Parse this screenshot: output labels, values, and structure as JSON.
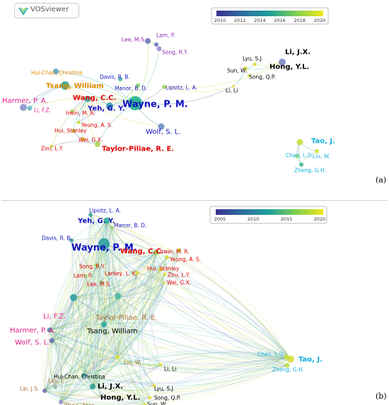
{
  "logo_text": "VOSviewer",
  "panel_a": {
    "label": "(a)",
    "legend": {
      "ticks": [
        "2010",
        "2012",
        "2014",
        "2016",
        "2018",
        "2020"
      ]
    },
    "nodes": [
      {
        "label": "Lee, M.S.",
        "color": "#8e2ab0"
      },
      {
        "label": "Lam, P.",
        "color": "#8e2ab0"
      },
      {
        "label": "Song, R.Y.",
        "color": "#8e2ab0"
      },
      {
        "label": "Hui-Chan, Christina",
        "color": "#e08a00"
      },
      {
        "label": "Tsang, William",
        "color": "#e08a00"
      },
      {
        "label": "Davis, R. B.",
        "color": "#1010c0"
      },
      {
        "label": "Manor, B. D.",
        "color": "#1010c0"
      },
      {
        "label": "Lipsitz, L. A.",
        "color": "#1010c0"
      },
      {
        "label": "Harmer, P. A.",
        "color": "#e0208a"
      },
      {
        "label": "Li, F.Z.",
        "color": "#e0208a"
      },
      {
        "label": "Wang, C.C.",
        "color": "#e00000"
      },
      {
        "label": "Yeh, G. Y.",
        "color": "#1010c0"
      },
      {
        "label": "Wayne, P. M.",
        "color": "#1010c0"
      },
      {
        "label": "Irwin, M. R.",
        "color": "#e00000"
      },
      {
        "label": "Yeung, A. S.",
        "color": "#e00000"
      },
      {
        "label": "Hui, Stanley",
        "color": "#e00000"
      },
      {
        "label": "Wei, G.X.",
        "color": "#e00000"
      },
      {
        "label": "Zou, L.Y.",
        "color": "#e00000"
      },
      {
        "label": "Taylor-Piliae, R. E.",
        "color": "#e00000"
      },
      {
        "label": "Wolf, S. L.",
        "color": "#1010c0"
      },
      {
        "label": "Lyu, S.J.",
        "color": "#000000"
      },
      {
        "label": "Li, J.X.",
        "color": "#000000"
      },
      {
        "label": "Sun, W.",
        "color": "#000000"
      },
      {
        "label": "Hong, Y.L.",
        "color": "#000000"
      },
      {
        "label": "Song, Q.P.",
        "color": "#000000"
      },
      {
        "label": "Li, Li",
        "color": "#000000"
      },
      {
        "label": "Tao, J.",
        "color": "#10b0e0"
      },
      {
        "label": "Chen, L.D.",
        "color": "#10b0e0"
      },
      {
        "label": "Liu, W.",
        "color": "#10b0e0"
      },
      {
        "label": "Zheng, G.H.",
        "color": "#10b0e0"
      }
    ]
  },
  "panel_b": {
    "label": "(b)",
    "legend": {
      "ticks": [
        "2005",
        "2010",
        "2015",
        "2020"
      ]
    },
    "nodes": [
      {
        "label": "Lipsitz, L. A.",
        "color": "#1010c0"
      },
      {
        "label": "Yeh, G. Y.",
        "color": "#1010c0"
      },
      {
        "label": "Manor, B. D.",
        "color": "#1010c0"
      },
      {
        "label": "Davis, R. B.",
        "color": "#1010c0"
      },
      {
        "label": "Wayne, P. M.",
        "color": "#1010c0"
      },
      {
        "label": "Wang, C.C.",
        "color": "#e00000"
      },
      {
        "label": "Irwin, M. R.",
        "color": "#e00000"
      },
      {
        "label": "Yeung, A. S.",
        "color": "#e00000"
      },
      {
        "label": "Song, R.Y.",
        "color": "#e00000"
      },
      {
        "label": "Hui, Stanley",
        "color": "#e00000"
      },
      {
        "label": "Larkey, L. K.",
        "color": "#e00000"
      },
      {
        "label": "Zou, L.Y.",
        "color": "#e00000"
      },
      {
        "label": "Lam, P.",
        "color": "#e00000"
      },
      {
        "label": "Wei, G.X.",
        "color": "#e00000"
      },
      {
        "label": "Lee, M.S.",
        "color": "#e00000"
      },
      {
        "label": "Li, F.Z.",
        "color": "#e0208a"
      },
      {
        "label": "Taylor-Piliae, R. E.",
        "color": "#b07040"
      },
      {
        "label": "Harmer, P. A.",
        "color": "#e0208a"
      },
      {
        "label": "Tsang, William",
        "color": "#000000"
      },
      {
        "label": "Wolf, S. L.",
        "color": "#e0208a"
      },
      {
        "label": "Chen, L.D.",
        "color": "#10b0e0"
      },
      {
        "label": "Tao, J.",
        "color": "#10b0e0"
      },
      {
        "label": "Zheng, G.H.",
        "color": "#10b0e0"
      },
      {
        "label": "Liu, W.",
        "color": "#b07040"
      },
      {
        "label": "Li, Li",
        "color": "#000000"
      },
      {
        "label": "Hui-Chan, Christina",
        "color": "#000000"
      },
      {
        "label": "Lai, J.S.",
        "color": "#b07040"
      },
      {
        "label": "Lan, C.",
        "color": "#b07040"
      },
      {
        "label": "Li, J.X.",
        "color": "#000000"
      },
      {
        "label": "Lyu, S.J.",
        "color": "#000000"
      },
      {
        "label": "Hong, Y.L.",
        "color": "#000000"
      },
      {
        "label": "Song, Q.P.",
        "color": "#000000"
      },
      {
        "label": "Sun, W.",
        "color": "#000000"
      },
      {
        "label": "Wang, Alice",
        "color": "#b07040"
      }
    ]
  }
}
